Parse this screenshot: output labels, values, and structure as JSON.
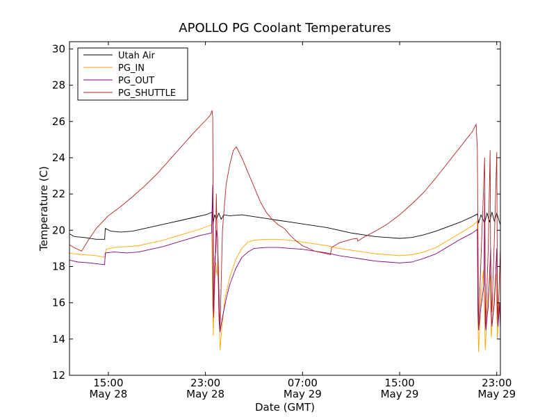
{
  "chart_data": {
    "type": "line",
    "title": "APOLLO PG Coolant Temperatures",
    "xlabel": "Date (GMT)",
    "ylabel": "Temperature (C)",
    "x_unit": "hours since 2013-05-28 00:00 GMT",
    "xlim": [
      11.8,
      47.3
    ],
    "ylim": [
      12,
      30.4
    ],
    "yticks": [
      12,
      14,
      16,
      18,
      20,
      22,
      24,
      26,
      28,
      30
    ],
    "xticks": [
      {
        "x": 15,
        "time": "15:00",
        "date": "May 28"
      },
      {
        "x": 23,
        "time": "23:00",
        "date": "May 28"
      },
      {
        "x": 31,
        "time": "07:00",
        "date": "May 29"
      },
      {
        "x": 39,
        "time": "15:00",
        "date": "May 29"
      },
      {
        "x": 47,
        "time": "23:00",
        "date": "May 29"
      }
    ],
    "legend_position": "top-left",
    "series": [
      {
        "name": "Utah Air",
        "color": "#000000",
        "points": [
          [
            11.8,
            19.8
          ],
          [
            12.2,
            19.65
          ],
          [
            13.0,
            19.6
          ],
          [
            14.0,
            19.5
          ],
          [
            14.7,
            19.5
          ],
          [
            14.75,
            20.1
          ],
          [
            15.2,
            19.95
          ],
          [
            16.0,
            19.9
          ],
          [
            17.0,
            19.95
          ],
          [
            18.0,
            20.1
          ],
          [
            19.0,
            20.25
          ],
          [
            20.0,
            20.4
          ],
          [
            21.0,
            20.55
          ],
          [
            22.0,
            20.7
          ],
          [
            23.0,
            20.85
          ],
          [
            23.4,
            20.95
          ],
          [
            23.55,
            21.0
          ],
          [
            23.62,
            20.3
          ],
          [
            23.75,
            20.85
          ],
          [
            23.9,
            20.6
          ],
          [
            24.1,
            20.95
          ],
          [
            24.3,
            20.6
          ],
          [
            24.5,
            20.85
          ],
          [
            25.0,
            20.8
          ],
          [
            26.0,
            20.85
          ],
          [
            27.0,
            20.75
          ],
          [
            28.0,
            20.65
          ],
          [
            29.0,
            20.55
          ],
          [
            30.0,
            20.45
          ],
          [
            31.0,
            20.35
          ],
          [
            32.0,
            20.25
          ],
          [
            33.0,
            20.15
          ],
          [
            34.0,
            20.0
          ],
          [
            35.0,
            19.85
          ],
          [
            36.0,
            19.75
          ],
          [
            37.0,
            19.65
          ],
          [
            38.0,
            19.6
          ],
          [
            39.0,
            19.55
          ],
          [
            40.0,
            19.6
          ],
          [
            41.0,
            19.75
          ],
          [
            42.0,
            19.95
          ],
          [
            43.0,
            20.2
          ],
          [
            44.0,
            20.45
          ],
          [
            45.0,
            20.75
          ],
          [
            45.4,
            20.9
          ],
          [
            45.5,
            20.4
          ],
          [
            45.7,
            20.85
          ],
          [
            46.0,
            20.4
          ],
          [
            46.2,
            20.95
          ],
          [
            46.4,
            20.45
          ],
          [
            46.6,
            21.0
          ],
          [
            46.8,
            20.5
          ],
          [
            47.0,
            20.95
          ],
          [
            47.2,
            20.5
          ],
          [
            47.3,
            20.3
          ]
        ]
      },
      {
        "name": "PG_IN",
        "color": "#ffa500",
        "points": [
          [
            11.8,
            18.75
          ],
          [
            12.2,
            18.7
          ],
          [
            13.0,
            18.65
          ],
          [
            14.0,
            18.6
          ],
          [
            14.75,
            18.5
          ],
          [
            14.8,
            18.95
          ],
          [
            15.5,
            19.05
          ],
          [
            16.5,
            19.1
          ],
          [
            17.5,
            19.15
          ],
          [
            18.5,
            19.3
          ],
          [
            19.5,
            19.45
          ],
          [
            20.5,
            19.65
          ],
          [
            21.5,
            19.85
          ],
          [
            22.5,
            20.05
          ],
          [
            23.5,
            20.3
          ],
          [
            23.6,
            16.0
          ],
          [
            23.65,
            14.2
          ],
          [
            23.75,
            18.0
          ],
          [
            23.85,
            18.2
          ],
          [
            23.95,
            17.5
          ],
          [
            24.05,
            18.5
          ],
          [
            24.12,
            15.5
          ],
          [
            24.2,
            13.4
          ],
          [
            24.35,
            14.6
          ],
          [
            24.6,
            16.2
          ],
          [
            25.0,
            17.4
          ],
          [
            25.5,
            18.4
          ],
          [
            26.0,
            19.0
          ],
          [
            26.5,
            19.35
          ],
          [
            27.0,
            19.45
          ],
          [
            28.0,
            19.5
          ],
          [
            29.0,
            19.5
          ],
          [
            30.0,
            19.45
          ],
          [
            31.0,
            19.35
          ],
          [
            32.0,
            19.25
          ],
          [
            33.0,
            19.15
          ],
          [
            34.0,
            19.0
          ],
          [
            35.0,
            18.9
          ],
          [
            36.0,
            18.8
          ],
          [
            37.0,
            18.7
          ],
          [
            38.0,
            18.65
          ],
          [
            39.0,
            18.6
          ],
          [
            40.0,
            18.65
          ],
          [
            41.0,
            18.8
          ],
          [
            42.0,
            19.05
          ],
          [
            43.0,
            19.45
          ],
          [
            44.0,
            19.85
          ],
          [
            45.0,
            20.25
          ],
          [
            45.4,
            20.5
          ],
          [
            45.45,
            15.0
          ],
          [
            45.5,
            13.3
          ],
          [
            45.7,
            16.3
          ],
          [
            45.9,
            17.8
          ],
          [
            46.0,
            15.0
          ],
          [
            46.05,
            13.4
          ],
          [
            46.25,
            16.0
          ],
          [
            46.45,
            17.5
          ],
          [
            46.5,
            15.5
          ],
          [
            46.55,
            14.1
          ],
          [
            46.75,
            16.2
          ],
          [
            46.95,
            17.6
          ],
          [
            47.0,
            15.5
          ],
          [
            47.05,
            14.0
          ],
          [
            47.2,
            16.0
          ],
          [
            47.3,
            14.8
          ]
        ]
      },
      {
        "name": "PG_OUT",
        "color": "#800080",
        "points": [
          [
            11.8,
            18.35
          ],
          [
            12.5,
            18.25
          ],
          [
            13.5,
            18.2
          ],
          [
            14.7,
            18.1
          ],
          [
            14.75,
            18.75
          ],
          [
            15.5,
            18.8
          ],
          [
            16.5,
            18.75
          ],
          [
            17.5,
            18.8
          ],
          [
            18.5,
            18.95
          ],
          [
            19.5,
            19.1
          ],
          [
            20.5,
            19.3
          ],
          [
            21.5,
            19.5
          ],
          [
            22.5,
            19.7
          ],
          [
            23.5,
            19.85
          ],
          [
            23.6,
            22.5
          ],
          [
            23.62,
            16.0
          ],
          [
            23.68,
            15.2
          ],
          [
            23.78,
            18.5
          ],
          [
            23.85,
            18.8
          ],
          [
            23.92,
            20.0
          ],
          [
            24.0,
            19.6
          ],
          [
            24.05,
            17.5
          ],
          [
            24.12,
            15.0
          ],
          [
            24.2,
            14.4
          ],
          [
            24.4,
            15.2
          ],
          [
            24.7,
            16.2
          ],
          [
            25.0,
            17.0
          ],
          [
            25.5,
            17.9
          ],
          [
            26.0,
            18.5
          ],
          [
            26.5,
            18.8
          ],
          [
            27.0,
            19.0
          ],
          [
            28.0,
            19.05
          ],
          [
            29.0,
            19.05
          ],
          [
            30.0,
            19.0
          ],
          [
            31.0,
            18.95
          ],
          [
            32.0,
            18.85
          ],
          [
            33.0,
            18.75
          ],
          [
            34.0,
            18.6
          ],
          [
            35.0,
            18.5
          ],
          [
            36.0,
            18.4
          ],
          [
            37.0,
            18.3
          ],
          [
            38.0,
            18.25
          ],
          [
            39.0,
            18.2
          ],
          [
            40.0,
            18.25
          ],
          [
            41.0,
            18.45
          ],
          [
            42.0,
            18.7
          ],
          [
            43.0,
            19.1
          ],
          [
            44.0,
            19.5
          ],
          [
            45.0,
            19.85
          ],
          [
            45.4,
            20.05
          ],
          [
            45.45,
            15.5
          ],
          [
            45.5,
            14.5
          ],
          [
            45.7,
            15.8
          ],
          [
            45.95,
            17.0
          ],
          [
            46.0,
            22.0
          ],
          [
            46.05,
            15.0
          ],
          [
            46.1,
            14.5
          ],
          [
            46.3,
            15.8
          ],
          [
            46.5,
            19.0
          ],
          [
            46.55,
            15.5
          ],
          [
            46.6,
            14.7
          ],
          [
            46.8,
            16.0
          ],
          [
            47.0,
            19.0
          ],
          [
            47.05,
            15.5
          ],
          [
            47.1,
            14.7
          ],
          [
            47.25,
            16.0
          ],
          [
            47.3,
            14.5
          ]
        ]
      },
      {
        "name": "PG_SHUTTLE",
        "color": "#b22222",
        "points": [
          [
            11.8,
            19.2
          ],
          [
            12.3,
            19.0
          ],
          [
            12.8,
            18.85
          ],
          [
            13.3,
            19.4
          ],
          [
            14.0,
            20.1
          ],
          [
            15.0,
            20.8
          ],
          [
            16.0,
            21.3
          ],
          [
            17.0,
            21.85
          ],
          [
            18.0,
            22.45
          ],
          [
            19.0,
            23.1
          ],
          [
            20.0,
            23.85
          ],
          [
            21.0,
            24.6
          ],
          [
            22.0,
            25.35
          ],
          [
            23.0,
            26.05
          ],
          [
            23.4,
            26.35
          ],
          [
            23.55,
            26.6
          ],
          [
            23.6,
            26.2
          ],
          [
            23.65,
            18.5
          ],
          [
            23.68,
            15.2
          ],
          [
            23.8,
            18.0
          ],
          [
            23.9,
            22.0
          ],
          [
            23.95,
            20.0
          ],
          [
            24.0,
            19.5
          ],
          [
            24.1,
            17.0
          ],
          [
            24.2,
            14.5
          ],
          [
            24.4,
            20.0
          ],
          [
            24.7,
            22.5
          ],
          [
            25.0,
            23.6
          ],
          [
            25.3,
            24.4
          ],
          [
            25.55,
            24.6
          ],
          [
            26.0,
            24.0
          ],
          [
            26.5,
            23.2
          ],
          [
            27.0,
            22.4
          ],
          [
            27.5,
            21.6
          ],
          [
            28.0,
            21.0
          ],
          [
            28.5,
            20.6
          ],
          [
            29.0,
            20.3
          ],
          [
            29.5,
            20.1
          ],
          [
            30.0,
            19.7
          ],
          [
            30.5,
            19.4
          ],
          [
            31.0,
            19.15
          ],
          [
            32.0,
            18.85
          ],
          [
            33.0,
            18.7
          ],
          [
            33.3,
            18.65
          ],
          [
            33.4,
            19.05
          ],
          [
            34.0,
            19.3
          ],
          [
            35.0,
            19.5
          ],
          [
            35.5,
            19.55
          ],
          [
            35.55,
            19.4
          ],
          [
            36.0,
            19.6
          ],
          [
            37.0,
            19.95
          ],
          [
            38.0,
            20.35
          ],
          [
            39.0,
            20.85
          ],
          [
            40.0,
            21.45
          ],
          [
            41.0,
            22.1
          ],
          [
            42.0,
            22.9
          ],
          [
            43.0,
            23.75
          ],
          [
            44.0,
            24.6
          ],
          [
            45.0,
            25.45
          ],
          [
            45.3,
            25.85
          ],
          [
            45.4,
            24.5
          ],
          [
            45.45,
            20.0
          ],
          [
            45.5,
            14.5
          ],
          [
            45.7,
            18.5
          ],
          [
            45.9,
            22.0
          ],
          [
            46.0,
            24.0
          ],
          [
            46.05,
            17.0
          ],
          [
            46.1,
            14.8
          ],
          [
            46.3,
            19.0
          ],
          [
            46.45,
            24.4
          ],
          [
            46.5,
            17.5
          ],
          [
            46.6,
            15.5
          ],
          [
            46.8,
            19.5
          ],
          [
            47.0,
            24.3
          ],
          [
            47.05,
            17.0
          ],
          [
            47.1,
            15.0
          ],
          [
            47.3,
            19.0
          ]
        ]
      }
    ]
  }
}
